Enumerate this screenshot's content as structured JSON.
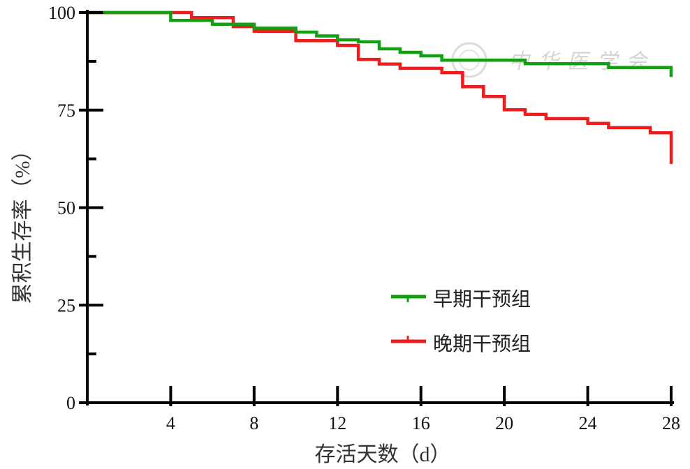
{
  "chart_data": {
    "type": "line",
    "interpolation": "step",
    "xlabel": "存活天数（d）",
    "ylabel": "累积生存率（%）",
    "xlim": [
      0,
      28
    ],
    "ylim": [
      0,
      100
    ],
    "x_ticks": [
      4,
      8,
      12,
      16,
      20,
      24,
      28
    ],
    "x_tick_labels": [
      "4",
      "8",
      "12",
      "16",
      "20",
      "24",
      "28"
    ],
    "y_ticks": [
      0,
      25,
      50,
      75,
      100
    ],
    "y_tick_labels": [
      "0",
      "25",
      "50",
      "75",
      "100"
    ],
    "y_minor_ticks": [
      12.5,
      37.5,
      62.5,
      87.5
    ],
    "grid": false,
    "legend_position": "lower-right",
    "series": [
      {
        "name": "早期干预组",
        "color": "#12a012",
        "points": [
          [
            0,
            100
          ],
          [
            4,
            98
          ],
          [
            6,
            97
          ],
          [
            8,
            96
          ],
          [
            10,
            95
          ],
          [
            11,
            94
          ],
          [
            12,
            93
          ],
          [
            13,
            92.5
          ],
          [
            14,
            90.7
          ],
          [
            15,
            89.8
          ],
          [
            16,
            88.9
          ],
          [
            17,
            87.8
          ],
          [
            21,
            86.9
          ],
          [
            25,
            85.9
          ],
          [
            28,
            83.5
          ]
        ]
      },
      {
        "name": "晚期干预组",
        "color": "#ee1c1c",
        "points": [
          [
            0,
            100
          ],
          [
            5,
            98.7
          ],
          [
            7,
            96.4
          ],
          [
            8,
            95.2
          ],
          [
            10,
            92.8
          ],
          [
            12,
            91.6
          ],
          [
            13,
            88
          ],
          [
            14,
            86.8
          ],
          [
            15,
            85.7
          ],
          [
            17,
            84.6
          ],
          [
            18,
            81
          ],
          [
            19,
            78.5
          ],
          [
            20,
            75.1
          ],
          [
            21,
            73.9
          ],
          [
            22,
            72.8
          ],
          [
            24,
            71.6
          ],
          [
            25,
            70.5
          ],
          [
            27,
            69.2
          ],
          [
            28,
            61.2
          ]
        ]
      }
    ]
  },
  "watermark": "中华医学会"
}
